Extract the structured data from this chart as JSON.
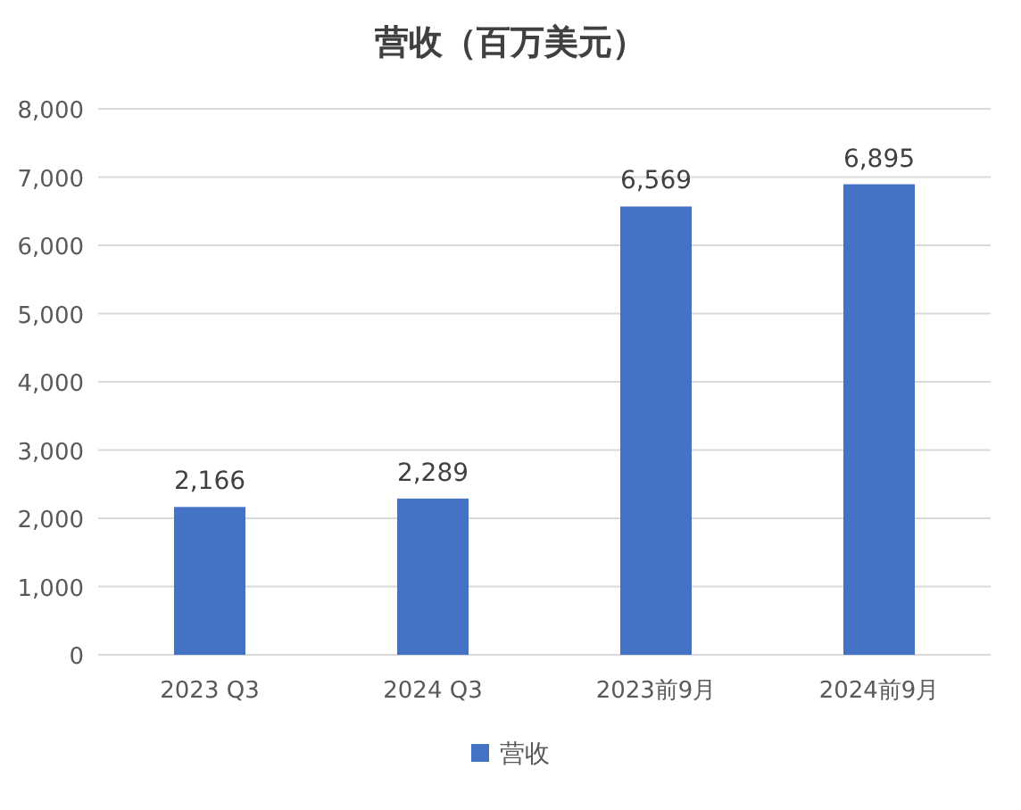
{
  "chart_data": {
    "type": "bar",
    "title": "营收（百万美元）",
    "categories": [
      "2023 Q3",
      "2024 Q3",
      "2023前9月",
      "2024前9月"
    ],
    "series": [
      {
        "name": "营收",
        "color": "#4472c4",
        "values": [
          2166,
          2289,
          6569,
          6895
        ]
      }
    ],
    "ylim": [
      0,
      8000
    ],
    "yticks": [
      {
        "value": 0,
        "label": "0"
      },
      {
        "value": 1000,
        "label": "1,000"
      },
      {
        "value": 2000,
        "label": "2,000"
      },
      {
        "value": 3000,
        "label": "3,000"
      },
      {
        "value": 4000,
        "label": "4,000"
      },
      {
        "value": 5000,
        "label": "5,000"
      },
      {
        "value": 6000,
        "label": "6,000"
      },
      {
        "value": 7000,
        "label": "7,000"
      },
      {
        "value": 8000,
        "label": "8,000"
      }
    ],
    "value_labels": [
      "2,166",
      "2,289",
      "6,569",
      "6,895"
    ],
    "grid": "y",
    "legend": "bottom"
  }
}
